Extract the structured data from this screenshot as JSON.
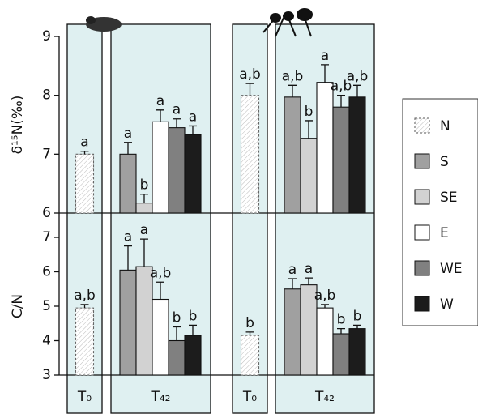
{
  "chart_data": [
    {
      "type": "bar",
      "ylabel": "δ¹⁵N(‰)",
      "ylim": [
        6,
        9
      ],
      "yticks": [
        6,
        7,
        8,
        9
      ],
      "categories": [
        "T₀",
        "T₄₂",
        "T₀",
        "T₄₂"
      ],
      "series": [
        {
          "name": "N",
          "color": "#ffffff",
          "pattern": "hatched",
          "values": [
            7.0,
            null,
            8.0,
            null
          ],
          "errors": [
            0.05,
            null,
            0.2,
            null
          ],
          "annotations": [
            "a",
            null,
            "a,b",
            null
          ]
        },
        {
          "name": "S",
          "color": "#a0a0a0",
          "values": [
            null,
            7.0,
            null,
            7.97
          ],
          "errors": [
            null,
            0.2,
            null,
            0.2
          ],
          "annotations": [
            null,
            "a",
            null,
            "a,b"
          ]
        },
        {
          "name": "SE",
          "color": "#d2d2d2",
          "values": [
            null,
            6.17,
            null,
            7.27
          ],
          "errors": [
            null,
            0.15,
            null,
            0.3
          ],
          "annotations": [
            null,
            "b",
            null,
            "b"
          ]
        },
        {
          "name": "E",
          "color": "#ffffff",
          "values": [
            null,
            7.55,
            null,
            8.22
          ],
          "errors": [
            null,
            0.2,
            null,
            0.3
          ],
          "annotations": [
            null,
            "a",
            null,
            "a"
          ]
        },
        {
          "name": "WE",
          "color": "#808080",
          "values": [
            null,
            7.45,
            null,
            7.8
          ],
          "errors": [
            null,
            0.15,
            null,
            0.2
          ],
          "annotations": [
            null,
            "a",
            null,
            "a,b"
          ]
        },
        {
          "name": "W",
          "color": "#1c1c1c",
          "values": [
            null,
            7.33,
            null,
            7.97
          ],
          "errors": [
            null,
            0.15,
            null,
            0.2
          ],
          "annotations": [
            null,
            "a",
            null,
            "a,b"
          ]
        }
      ]
    },
    {
      "type": "bar",
      "ylabel": "C/N",
      "ylim": [
        3,
        7
      ],
      "yticks": [
        3,
        4,
        5,
        6,
        7
      ],
      "categories": [
        "T₀",
        "T₄₂",
        "T₀",
        "T₄₂"
      ],
      "series": [
        {
          "name": "N",
          "color": "#ffffff",
          "pattern": "hatched",
          "values": [
            4.95,
            null,
            4.15,
            null
          ],
          "errors": [
            0.1,
            null,
            0.1,
            null
          ],
          "annotations": [
            "a,b",
            null,
            "b",
            null
          ]
        },
        {
          "name": "S",
          "color": "#a0a0a0",
          "values": [
            null,
            6.05,
            null,
            5.5
          ],
          "errors": [
            null,
            0.7,
            null,
            0.3
          ],
          "annotations": [
            null,
            "a",
            null,
            "a"
          ]
        },
        {
          "name": "SE",
          "color": "#d2d2d2",
          "values": [
            null,
            6.15,
            null,
            5.62
          ],
          "errors": [
            null,
            0.8,
            null,
            0.2
          ],
          "annotations": [
            null,
            "a",
            null,
            "a"
          ]
        },
        {
          "name": "E",
          "color": "#ffffff",
          "values": [
            null,
            5.2,
            null,
            4.95
          ],
          "errors": [
            null,
            0.5,
            null,
            0.1
          ],
          "annotations": [
            null,
            "a,b",
            null,
            "a,b"
          ]
        },
        {
          "name": "WE",
          "color": "#808080",
          "values": [
            null,
            4.0,
            null,
            4.2
          ],
          "errors": [
            null,
            0.4,
            null,
            0.15
          ],
          "annotations": [
            null,
            "b",
            null,
            "b"
          ]
        },
        {
          "name": "W",
          "color": "#1c1c1c",
          "values": [
            null,
            4.15,
            null,
            4.35
          ],
          "errors": [
            null,
            0.3,
            null,
            0.1
          ],
          "annotations": [
            null,
            "b",
            null,
            "b"
          ]
        }
      ]
    }
  ]
}
